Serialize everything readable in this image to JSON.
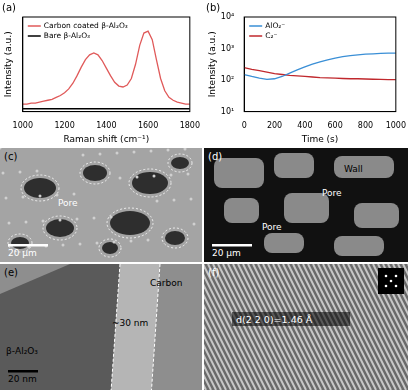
{
  "chart_data": [
    {
      "type": "line",
      "title": "(a)",
      "x_label": "Raman shift (cm⁻¹)",
      "y_label": "Intensity (a.u.)",
      "x": [
        1000,
        1020,
        1040,
        1060,
        1080,
        1100,
        1120,
        1140,
        1160,
        1180,
        1200,
        1220,
        1240,
        1260,
        1280,
        1300,
        1320,
        1340,
        1360,
        1380,
        1400,
        1420,
        1440,
        1460,
        1480,
        1500,
        1520,
        1540,
        1560,
        1580,
        1600,
        1620,
        1640,
        1660,
        1680,
        1700,
        1720,
        1740,
        1760,
        1780,
        1800
      ],
      "series": [
        {
          "name": "Carbon coated β-Al₂O₃",
          "color": "#e05a5a",
          "values": [
            8,
            8,
            9,
            9,
            10,
            11,
            12,
            13,
            15,
            17,
            20,
            24,
            30,
            38,
            47,
            55,
            60,
            62,
            60,
            54,
            46,
            38,
            31,
            27,
            26,
            28,
            35,
            50,
            70,
            83,
            85,
            76,
            55,
            35,
            22,
            15,
            12,
            10,
            9,
            8,
            8
          ]
        },
        {
          "name": "Bare β-Al₂O₃",
          "color": "#000000",
          "values": [
            3,
            3,
            3,
            3,
            3,
            3,
            3,
            3,
            3,
            3,
            3,
            3,
            3,
            3,
            3,
            3,
            3,
            3,
            3,
            3,
            3,
            3,
            3,
            3,
            3,
            3,
            3,
            3,
            3,
            3,
            3,
            3,
            3,
            3,
            3,
            3,
            3,
            3,
            3,
            3,
            3
          ]
        }
      ],
      "xlim": [
        1000,
        1800
      ],
      "xticks": [
        1000,
        1200,
        1400,
        1600,
        1800
      ],
      "ylim": [
        0,
        100
      ],
      "tick_labels": "x",
      "grid": false,
      "legend": "upper left"
    },
    {
      "type": "line",
      "title": "(b)",
      "x_label": "Time (s)",
      "y_label": "Intensity (a.u.)",
      "x": [
        0,
        50,
        100,
        150,
        200,
        250,
        300,
        350,
        400,
        450,
        500,
        550,
        600,
        650,
        700,
        750,
        800,
        850,
        900,
        950,
        1000
      ],
      "series": [
        {
          "name": "AlO₂⁻",
          "color": "#3a8fd6",
          "values": [
            150,
            130,
            115,
            105,
            110,
            130,
            165,
            210,
            260,
            320,
            380,
            440,
            500,
            550,
            600,
            630,
            660,
            680,
            700,
            710,
            720
          ]
        },
        {
          "name": "C₂⁻",
          "color": "#c0282d",
          "values": [
            250,
            220,
            200,
            180,
            160,
            150,
            140,
            135,
            130,
            125,
            120,
            118,
            115,
            112,
            110,
            110,
            108,
            106,
            105,
            104,
            103
          ]
        }
      ],
      "xlim": [
        0,
        1000
      ],
      "xticks": [
        0,
        200,
        400,
        600,
        800,
        1000
      ],
      "ylim": [
        10,
        10000
      ],
      "yticks": [
        {
          "value": 10,
          "label": "10¹"
        },
        {
          "value": 100,
          "label": "10²"
        },
        {
          "value": 1000,
          "label": "10³"
        },
        {
          "value": 10000,
          "label": "10⁴"
        }
      ],
      "log": "y",
      "grid": false,
      "legend": "upper left"
    }
  ],
  "images": [
    {
      "panel": "(c)",
      "labels": [
        "Pore"
      ],
      "scale_bar": "20 μm"
    },
    {
      "panel": "(d)",
      "labels": [
        "Wall",
        "Pore",
        "Pore"
      ],
      "scale_bar": "20 μm"
    },
    {
      "panel": "(e)",
      "labels": [
        "Carbon",
        "~30 nm",
        "β-Al₂O₃"
      ],
      "scale_bar": "20 nm"
    },
    {
      "panel": "(f)",
      "labels": [
        "d(2 2 0)=1.46 Å"
      ]
    }
  ]
}
